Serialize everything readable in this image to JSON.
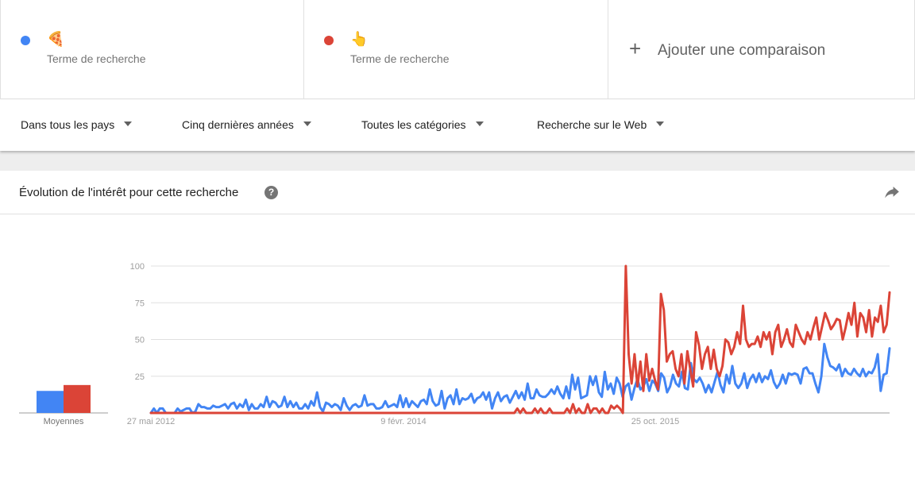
{
  "terms": [
    {
      "emoji": "🍕",
      "subtitle": "Terme de recherche",
      "color": "#4285f4"
    },
    {
      "emoji": "👆",
      "subtitle": "Terme de recherche",
      "color": "#db4437"
    }
  ],
  "add_comparison": {
    "plus": "+",
    "label": "Ajouter une comparaison"
  },
  "filters": {
    "region": "Dans tous les pays",
    "time": "Cinq dernières années",
    "category": "Toutes les catégories",
    "search_type": "Recherche sur le Web"
  },
  "card": {
    "title": "Évolution de l'intérêt pour cette recherche",
    "help_icon": "?"
  },
  "chart_data": {
    "type": "line",
    "x_tick_labels": [
      "27 mai 2012",
      "9 févr. 2014",
      "25 oct. 2015"
    ],
    "y_ticks": [
      25,
      50,
      75,
      100
    ],
    "ylim": [
      0,
      100
    ],
    "averages_label": "Moyennes",
    "averages": [
      {
        "color": "#4285f4",
        "value": 15
      },
      {
        "color": "#db4437",
        "value": 19
      }
    ],
    "series": [
      {
        "color": "#4285f4",
        "values": [
          0,
          3,
          0,
          3,
          3,
          0,
          0,
          0,
          0,
          3,
          1,
          2,
          3,
          3,
          0,
          1,
          6,
          4,
          4,
          3,
          3,
          5,
          4,
          4,
          5,
          6,
          3,
          6,
          7,
          3,
          6,
          4,
          9,
          2,
          6,
          3,
          3,
          6,
          4,
          11,
          4,
          8,
          7,
          4,
          5,
          11,
          4,
          8,
          4,
          7,
          3,
          3,
          6,
          3,
          8,
          5,
          14,
          4,
          1,
          7,
          6,
          4,
          6,
          5,
          2,
          10,
          5,
          2,
          5,
          6,
          4,
          5,
          12,
          5,
          6,
          6,
          3,
          3,
          4,
          8,
          4,
          5,
          6,
          4,
          12,
          4,
          10,
          4,
          8,
          6,
          4,
          8,
          9,
          6,
          16,
          8,
          5,
          6,
          15,
          3,
          10,
          12,
          6,
          16,
          6,
          10,
          9,
          10,
          13,
          7,
          10,
          11,
          14,
          9,
          14,
          3,
          10,
          14,
          8,
          11,
          12,
          7,
          11,
          15,
          10,
          14,
          9,
          20,
          10,
          10,
          16,
          12,
          11,
          11,
          13,
          16,
          13,
          18,
          13,
          10,
          18,
          10,
          26,
          16,
          24,
          10,
          11,
          12,
          25,
          19,
          25,
          14,
          11,
          28,
          16,
          20,
          13,
          24,
          20,
          11,
          18,
          20,
          9,
          17,
          23,
          16,
          18,
          23,
          15,
          22,
          20,
          15,
          27,
          24,
          14,
          18,
          26,
          20,
          18,
          28,
          17,
          16,
          34,
          23,
          21,
          24,
          20,
          14,
          19,
          14,
          21,
          28,
          19,
          14,
          26,
          20,
          32,
          20,
          17,
          20,
          27,
          17,
          23,
          26,
          21,
          27,
          21,
          25,
          23,
          29,
          21,
          17,
          20,
          26,
          20,
          27,
          26,
          27,
          26,
          20,
          30,
          31,
          27,
          27,
          20,
          14,
          25,
          47,
          38,
          32,
          31,
          29,
          33,
          25,
          30,
          27,
          26,
          30,
          27,
          25,
          30,
          25,
          28,
          27,
          31,
          40,
          15,
          26,
          27,
          44
        ]
      },
      {
        "color": "#db4437",
        "values": [
          0,
          0,
          0,
          0,
          0,
          0,
          0,
          0,
          0,
          0,
          0,
          0,
          0,
          0,
          0,
          0,
          0,
          0,
          0,
          0,
          0,
          0,
          0,
          0,
          0,
          0,
          0,
          0,
          0,
          0,
          0,
          0,
          0,
          0,
          0,
          0,
          0,
          0,
          0,
          0,
          0,
          0,
          0,
          0,
          0,
          0,
          0,
          0,
          0,
          0,
          0,
          0,
          0,
          0,
          0,
          0,
          0,
          0,
          0,
          0,
          0,
          0,
          0,
          0,
          0,
          0,
          0,
          0,
          0,
          0,
          0,
          0,
          0,
          0,
          0,
          0,
          0,
          0,
          0,
          0,
          0,
          0,
          0,
          0,
          0,
          0,
          0,
          0,
          0,
          0,
          0,
          0,
          0,
          0,
          0,
          0,
          0,
          0,
          0,
          0,
          0,
          0,
          0,
          0,
          0,
          0,
          0,
          0,
          0,
          0,
          0,
          0,
          0,
          0,
          0,
          0,
          0,
          0,
          0,
          0,
          0,
          0,
          0,
          0,
          0,
          3,
          0,
          3,
          0,
          0,
          0,
          3,
          0,
          3,
          0,
          0,
          3,
          0,
          0,
          0,
          0,
          0,
          3,
          0,
          6,
          0,
          3,
          0,
          0,
          6,
          0,
          3,
          3,
          0,
          3,
          0,
          0,
          5,
          3,
          5,
          3,
          0,
          100,
          40,
          20,
          40,
          18,
          35,
          15,
          40,
          22,
          30,
          22,
          16,
          81,
          70,
          35,
          40,
          42,
          30,
          25,
          40,
          20,
          42,
          30,
          18,
          55,
          46,
          30,
          40,
          45,
          30,
          43,
          30,
          25,
          32,
          50,
          48,
          40,
          45,
          55,
          47,
          73,
          50,
          45,
          47,
          47,
          52,
          45,
          55,
          50,
          55,
          40,
          55,
          60,
          45,
          50,
          57,
          48,
          45,
          60,
          55,
          50,
          47,
          55,
          50,
          58,
          65,
          50,
          59,
          68,
          63,
          57,
          60,
          64,
          63,
          50,
          58,
          68,
          60,
          75,
          52,
          68,
          65,
          55,
          70,
          52,
          65,
          62,
          73,
          55,
          60,
          82
        ]
      }
    ]
  }
}
